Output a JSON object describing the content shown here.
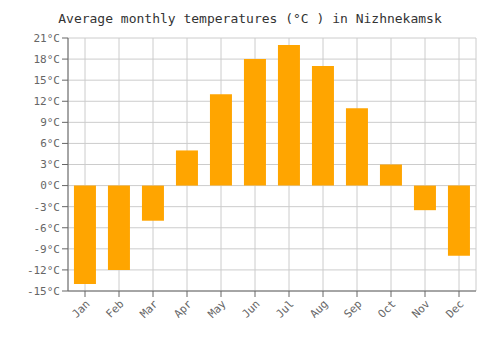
{
  "chart_data": {
    "type": "bar",
    "title": "Average monthly temperatures (°C ) in Nizhnekamsk",
    "categories": [
      "Jan",
      "Feb",
      "Mar",
      "Apr",
      "May",
      "Jun",
      "Jul",
      "Aug",
      "Sep",
      "Oct",
      "Nov",
      "Dec"
    ],
    "values": [
      -14,
      -12,
      -5,
      5,
      13,
      18,
      20,
      17,
      11,
      3,
      -3.5,
      -10
    ],
    "color": "#FFA500",
    "ylim": [
      -15,
      21
    ],
    "yticks": [
      {
        "value": -15,
        "label": "-15°C"
      },
      {
        "value": -12,
        "label": "-12°C"
      },
      {
        "value": -9,
        "label": "-9°C"
      },
      {
        "value": -6,
        "label": "-6°C"
      },
      {
        "value": -3,
        "label": "-3°C"
      },
      {
        "value": 0,
        "label": "0°C"
      },
      {
        "value": 3,
        "label": "3°C"
      },
      {
        "value": 6,
        "label": "6°C"
      },
      {
        "value": 9,
        "label": "9°C"
      },
      {
        "value": 12,
        "label": "12°C"
      },
      {
        "value": 15,
        "label": "15°C"
      },
      {
        "value": 18,
        "label": "18°C"
      },
      {
        "value": 21,
        "label": "21°C"
      }
    ],
    "grid": true
  }
}
